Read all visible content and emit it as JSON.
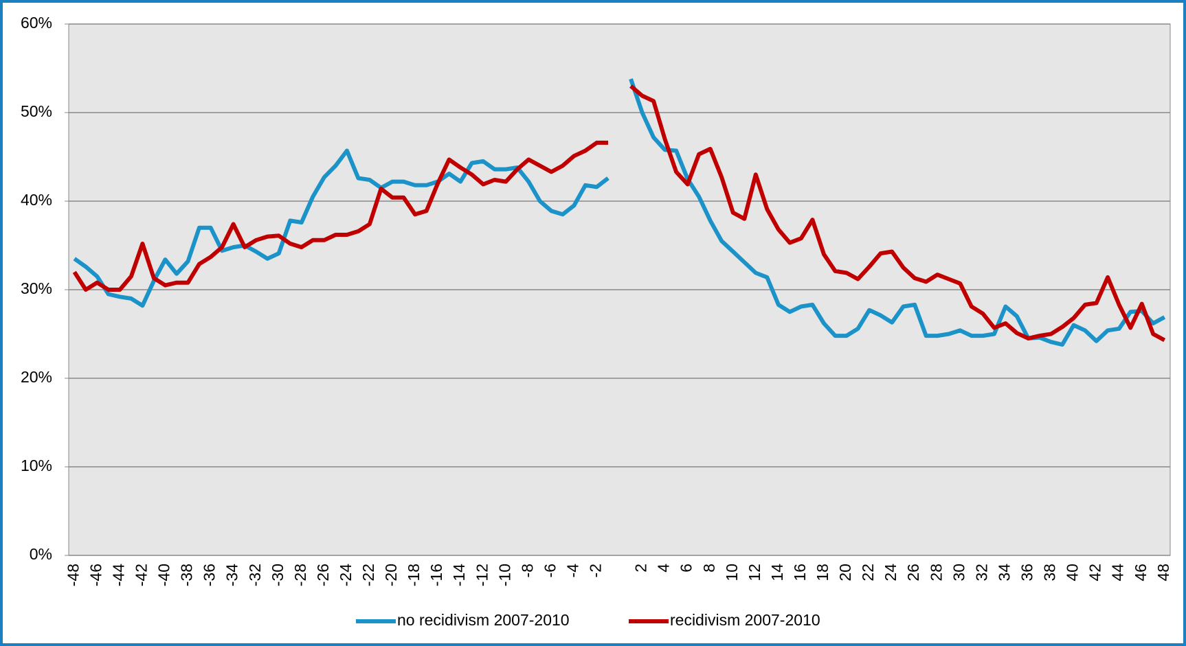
{
  "chart_data": {
    "type": "line",
    "categories": [
      "-48",
      null,
      "-46",
      null,
      "-44",
      null,
      "-42",
      null,
      "-40",
      null,
      "-38",
      null,
      "-36",
      null,
      "-34",
      null,
      "-32",
      null,
      "-30",
      null,
      "-28",
      null,
      "-26",
      null,
      "-24",
      null,
      "-22",
      null,
      "-20",
      null,
      "-18",
      null,
      "-16",
      null,
      "-14",
      null,
      "-12",
      null,
      "-10",
      null,
      "-8",
      null,
      "-6",
      null,
      "-4",
      null,
      "-2",
      null,
      null,
      null,
      "2",
      null,
      "4",
      null,
      "6",
      null,
      "8",
      null,
      "10",
      null,
      "12",
      null,
      "14",
      null,
      "16",
      null,
      "18",
      null,
      "20",
      null,
      "22",
      null,
      "24",
      null,
      "26",
      null,
      "28",
      null,
      "30",
      null,
      "32",
      null,
      "34",
      null,
      "36",
      null,
      "38",
      null,
      "40",
      null,
      "42",
      null,
      "44",
      null,
      "46",
      null,
      "48"
    ],
    "series": [
      {
        "name": "no recidivism 2007-2010",
        "color": "#1b93c8",
        "values": [
          33.5,
          32.6,
          31.5,
          29.5,
          29.2,
          29.0,
          28.2,
          31.0,
          33.4,
          31.8,
          33.2,
          37.0,
          37.0,
          34.4,
          34.8,
          35.0,
          34.3,
          33.5,
          34.1,
          37.8,
          37.6,
          40.5,
          42.7,
          44.0,
          45.7,
          42.6,
          42.4,
          41.5,
          42.2,
          42.2,
          41.8,
          41.8,
          42.2,
          43.1,
          42.2,
          44.3,
          44.5,
          43.6,
          43.6,
          43.8,
          42.2,
          40.0,
          38.9,
          38.5,
          39.5,
          41.8,
          41.6,
          42.6,
          null,
          53.8,
          50.0,
          47.2,
          45.8,
          45.7,
          42.5,
          40.5,
          37.8,
          35.5,
          34.3,
          33.1,
          31.9,
          31.4,
          28.3,
          27.5,
          28.1,
          28.3,
          26.2,
          24.8,
          24.8,
          25.6,
          27.7,
          27.1,
          26.3,
          28.1,
          28.3,
          24.8,
          24.8,
          25.0,
          25.4,
          24.8,
          24.8,
          25.0,
          28.1,
          27.0,
          24.5,
          24.6,
          24.1,
          23.8,
          26.0,
          25.4,
          24.2,
          25.4,
          25.6,
          27.5,
          27.6,
          26.2,
          26.9
        ]
      },
      {
        "name": "recidivism 2007-2010",
        "color": "#c00000",
        "values": [
          32.0,
          30.0,
          30.8,
          30.0,
          30.0,
          31.5,
          35.2,
          31.3,
          30.5,
          30.8,
          30.8,
          32.9,
          33.7,
          34.8,
          37.4,
          34.8,
          35.6,
          36.0,
          36.1,
          35.2,
          34.8,
          35.6,
          35.6,
          36.2,
          36.2,
          36.6,
          37.4,
          41.4,
          40.4,
          40.4,
          38.5,
          38.9,
          42.0,
          44.7,
          43.8,
          43.0,
          41.9,
          42.4,
          42.2,
          43.6,
          44.7,
          44.0,
          43.3,
          44.0,
          45.1,
          45.7,
          46.6,
          46.6,
          null,
          53.0,
          51.9,
          51.3,
          47.0,
          43.3,
          41.9,
          45.3,
          45.9,
          42.7,
          38.7,
          38.0,
          43.0,
          39.1,
          36.8,
          35.3,
          35.8,
          37.9,
          34.0,
          32.1,
          31.9,
          31.2,
          32.6,
          34.1,
          34.3,
          32.5,
          31.3,
          30.9,
          31.7,
          31.2,
          30.7,
          28.1,
          27.3,
          25.7,
          26.2,
          25.1,
          24.5,
          24.8,
          25.0,
          25.8,
          26.8,
          28.3,
          28.5,
          31.4,
          28.3,
          25.7,
          28.4,
          25.0,
          24.3
        ]
      }
    ],
    "ylim": [
      0,
      60
    ],
    "yticks": [
      {
        "value": 0,
        "label": "0%"
      },
      {
        "value": 10,
        "label": "10%"
      },
      {
        "value": 20,
        "label": "20%"
      },
      {
        "value": 30,
        "label": "30%"
      },
      {
        "value": 40,
        "label": "40%"
      },
      {
        "value": 50,
        "label": "50%"
      },
      {
        "value": 60,
        "label": "60%"
      }
    ],
    "grid": true,
    "legend": "bottom"
  }
}
